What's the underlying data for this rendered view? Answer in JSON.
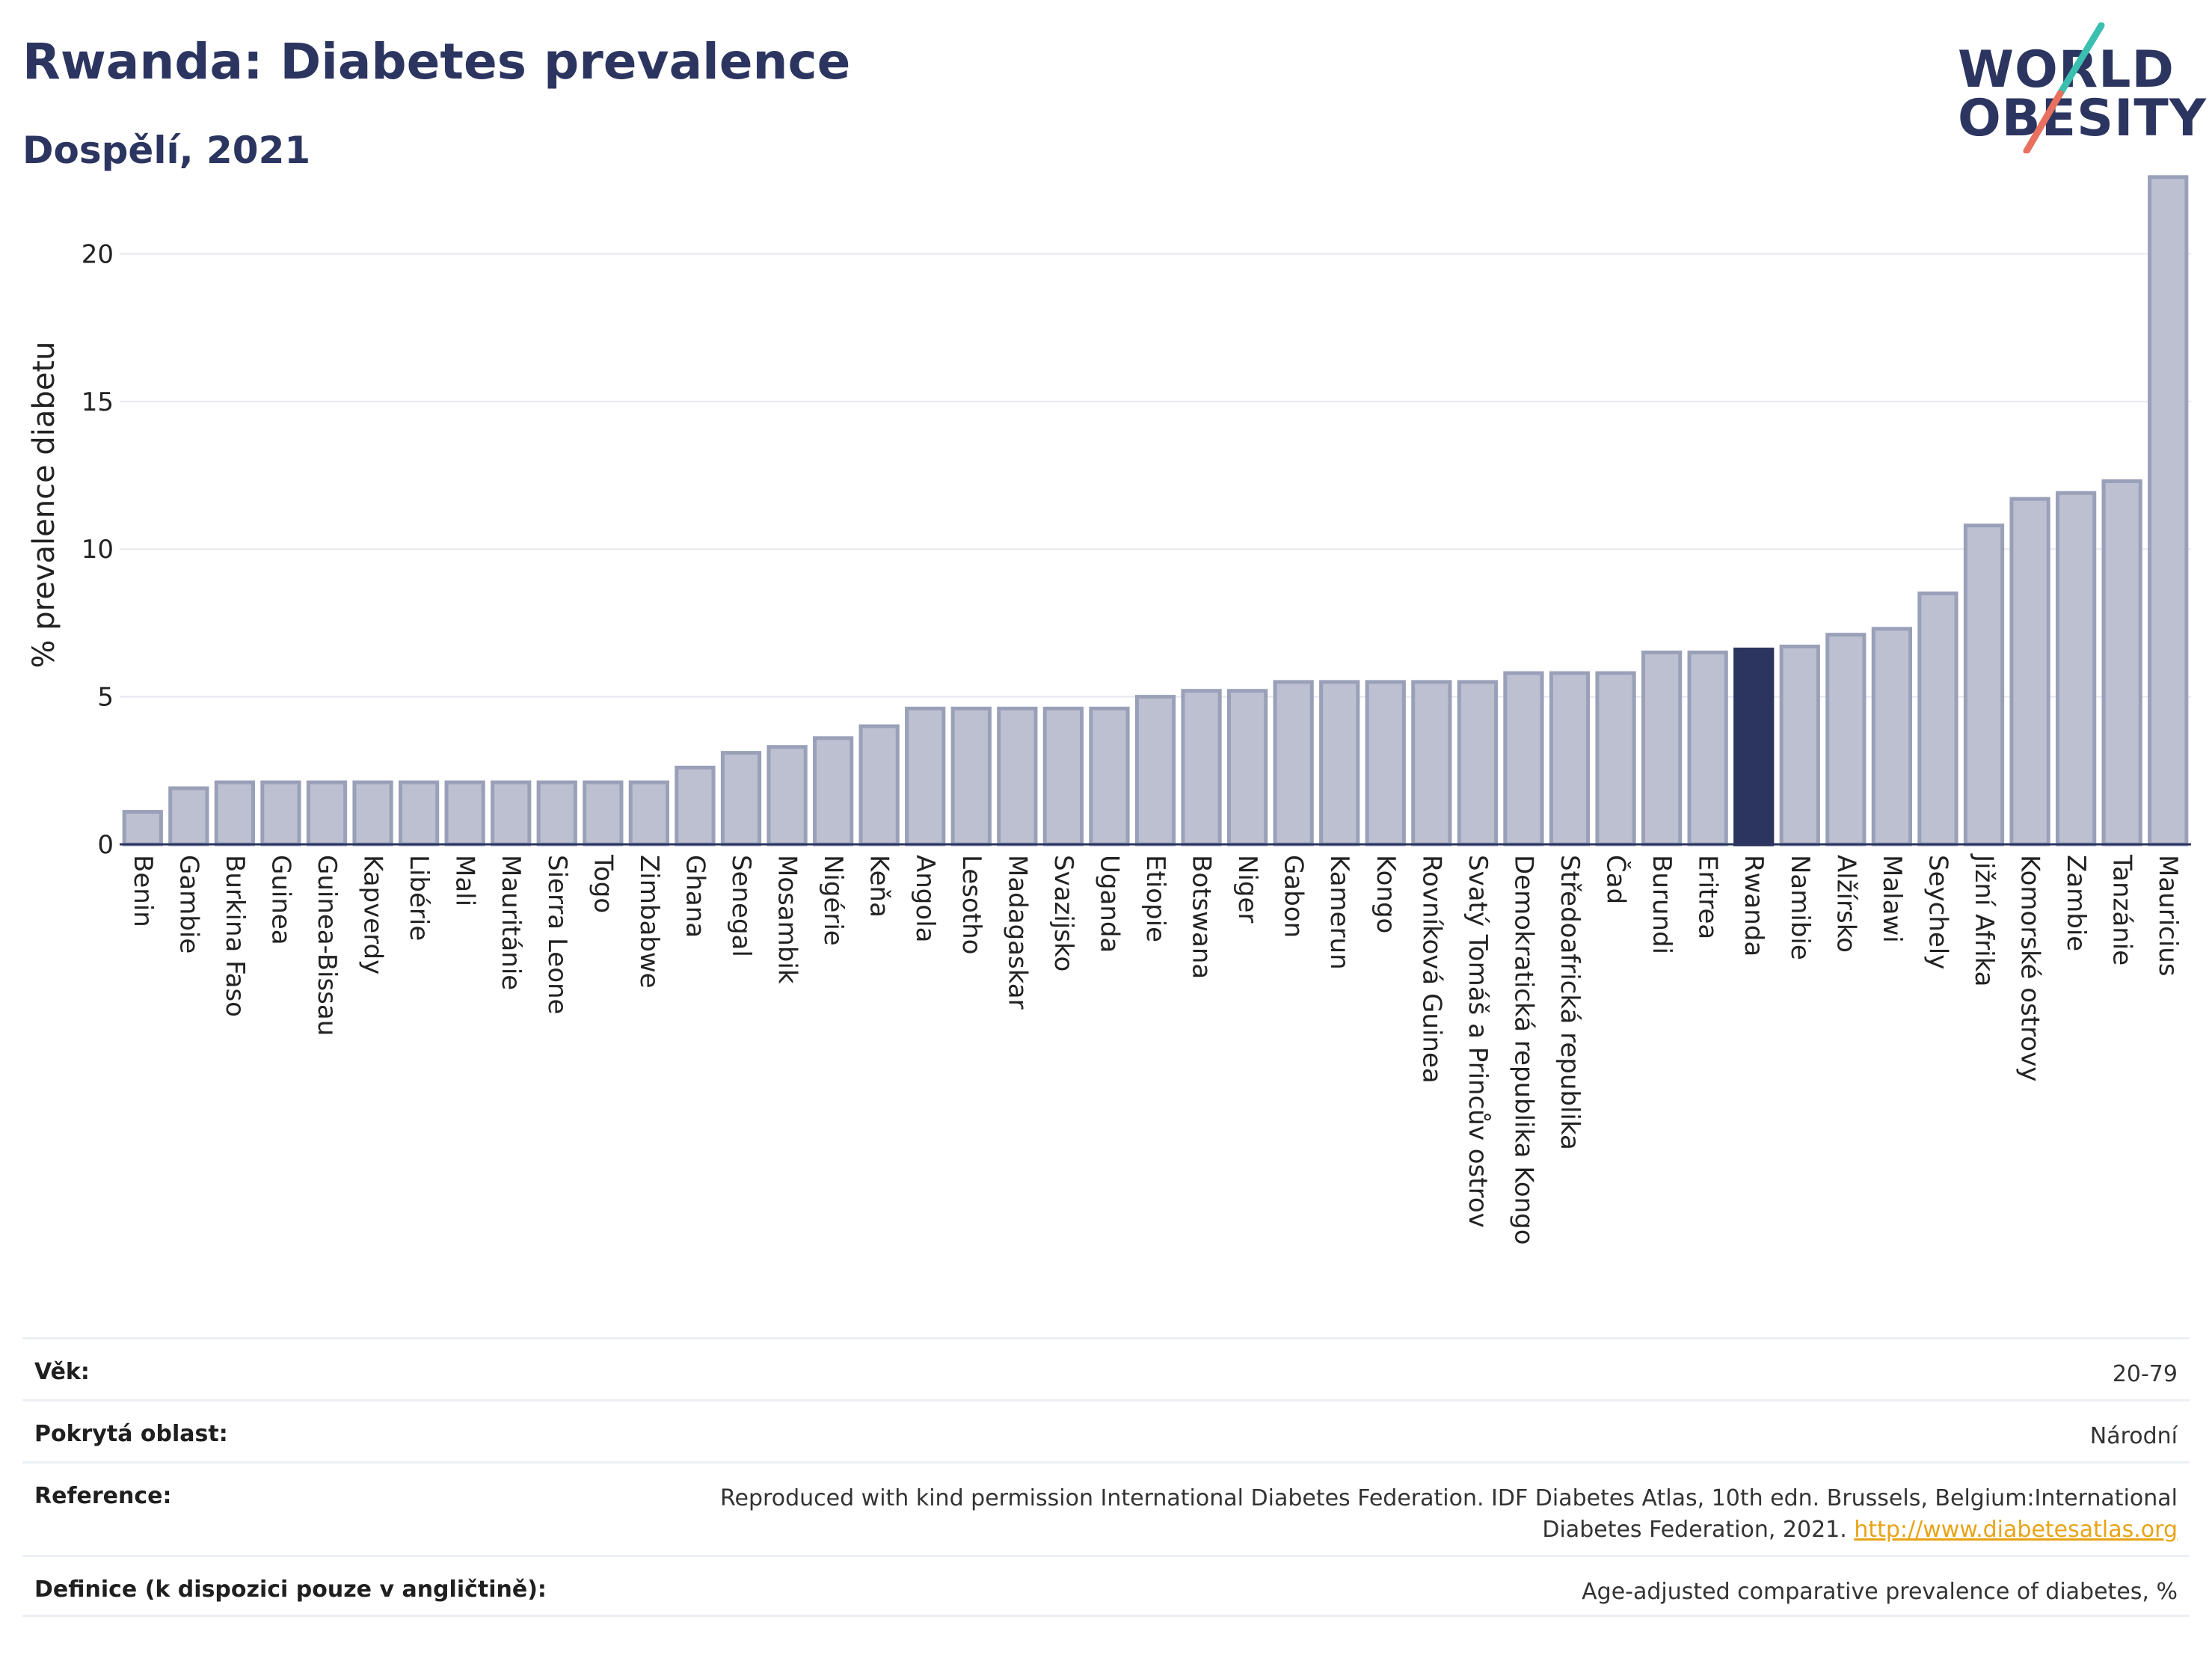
{
  "header": {
    "title": "Rwanda: Diabetes prevalence",
    "subtitle": "Dospělí, 2021"
  },
  "logo": {
    "line1": "WORLD",
    "line2": "OBESITY"
  },
  "chart_data": {
    "type": "bar",
    "ylabel": "% prevalence diabetu",
    "ylim": [
      0,
      23
    ],
    "yticks": [
      0,
      5,
      10,
      15,
      20
    ],
    "grid": true,
    "highlight": "Rwanda",
    "colors": {
      "bar": "#bcc0d1",
      "bar_edge": "#9aa0b8",
      "highlight": "#2b3560",
      "grid": "#e6e8ef"
    },
    "categories": [
      "Benin",
      "Gambie",
      "Burkina Faso",
      "Guinea",
      "Guinea-Bissau",
      "Kapverdy",
      "Libérie",
      "Mali",
      "Mauritánie",
      "Sierra Leone",
      "Togo",
      "Zimbabwe",
      "Ghana",
      "Senegal",
      "Mosambik",
      "Nigérie",
      "Keňa",
      "Angola",
      "Lesotho",
      "Madagaskar",
      "Svazijsko",
      "Uganda",
      "Etiopie",
      "Botswana",
      "Niger",
      "Gabon",
      "Kamerun",
      "Kongo",
      "Rovníková Guinea",
      "Svatý Tomáš a Princův ostrov",
      "Demokratická republika Kongo",
      "Středoafrická republika",
      "Čad",
      "Burundi",
      "Eritrea",
      "Rwanda",
      "Namibie",
      "Alžírsko",
      "Malawi",
      "Seychely",
      "Jižní Afrika",
      "Komorské ostrovy",
      "Zambie",
      "Tanzánie",
      "Mauricius"
    ],
    "values": [
      1.1,
      1.9,
      2.1,
      2.1,
      2.1,
      2.1,
      2.1,
      2.1,
      2.1,
      2.1,
      2.1,
      2.1,
      2.6,
      3.1,
      3.3,
      3.6,
      4.0,
      4.6,
      4.6,
      4.6,
      4.6,
      4.6,
      5.0,
      5.2,
      5.2,
      5.5,
      5.5,
      5.5,
      5.5,
      5.5,
      5.8,
      5.8,
      5.8,
      6.5,
      6.5,
      6.6,
      6.7,
      7.1,
      7.3,
      8.5,
      10.8,
      11.7,
      11.9,
      12.3,
      22.6
    ]
  },
  "meta": {
    "age_label": "Věk:",
    "age_value": "20-79",
    "area_label": "Pokrytá oblast:",
    "area_value": "Národní",
    "ref_label": "Reference:",
    "ref_value": "Reproduced with kind permission International Diabetes Federation.  IDF Diabetes Atlas, 10th edn. Brussels, Belgium:International Diabetes Federation, 2021.",
    "ref_link": "http://www.diabetesatlas.org",
    "def_label": "Definice (k dispozici pouze v angličtině):",
    "def_value": "Age-adjusted comparative prevalence of diabetes, %"
  }
}
